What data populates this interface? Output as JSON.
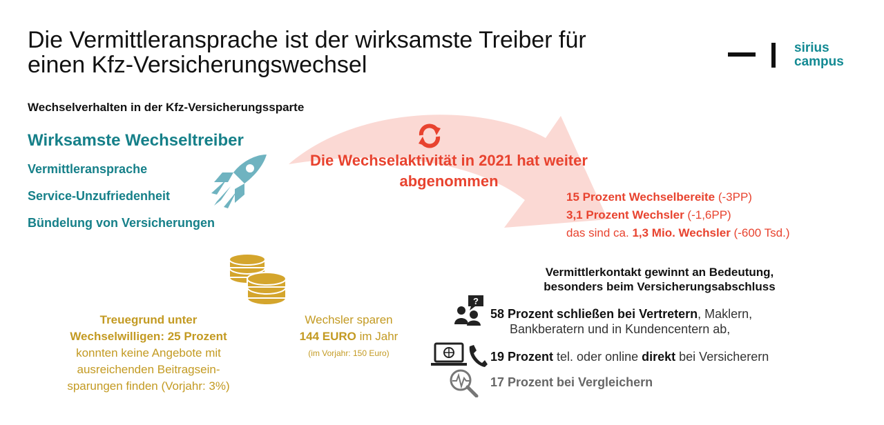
{
  "title": "Die Vermittleransprache ist der wirksamste Treiber für einen Kfz-Versicherungswechsel",
  "logo": {
    "line1": "sirius",
    "line2": "campus"
  },
  "subtitle": "Wechselverhalten in der Kfz-Versicherungssparte",
  "drivers": {
    "heading": "Wirksamste Wechseltreiber",
    "items": [
      "Vermittleransprache",
      "Service-Unzufriedenheit",
      "Bündelung von Versicherungen"
    ]
  },
  "headline": "Die Wechselaktivität in 2021 hat weiter abgenommen",
  "stats": {
    "line1_bold": "15 Prozent Wechselbereite",
    "line1_rest": " (-3PP)",
    "line2_bold": "3,1 Prozent Wechsler",
    "line2_rest": " (-1,6PP)",
    "line3_pre": "das sind ca. ",
    "line3_bold": "1,3 Mio. Wechsler",
    "line3_rest": " (-600 Tsd.)"
  },
  "contact": {
    "heading_line1": "Vermittlerkontakt gewinnt an Bedeutung,",
    "heading_line2": "besonders beim Versicherungsabschluss",
    "ch1_bold": "58 Prozent schließen bei Vertretern",
    "ch1_rest": ", Maklern,",
    "ch1_line2": "Bankberatern und in Kundencentern ab,",
    "ch2_bold1": "19 Prozent",
    "ch2_mid": " tel. oder online ",
    "ch2_bold2": "direkt",
    "ch2_rest": " bei Versicherern",
    "ch3": "17 Prozent bei Vergleichern"
  },
  "loyalty": {
    "bold1": "Treuegrund unter",
    "bold2": "Wechselwilligen: 25 Prozent",
    "rest1": "konnten keine Angebote mit",
    "rest2": "ausreichenden Beitragsein-",
    "rest3": "sparungen finden (Vorjahr: 3%)"
  },
  "savings": {
    "line1": "Wechsler sparen",
    "bold": "144 EURO",
    "rest": " im Jahr",
    "note": "(im Vorjahr: 150 Euro)"
  },
  "colors": {
    "teal": "#168089",
    "red": "#e8432f",
    "gold": "#c39a22",
    "arrow": "#fbd9d4"
  },
  "icons": [
    "rocket-icon",
    "refresh-icon",
    "coins-icon",
    "people-question-icon",
    "laptop-phone-icon",
    "search-chart-icon"
  ]
}
